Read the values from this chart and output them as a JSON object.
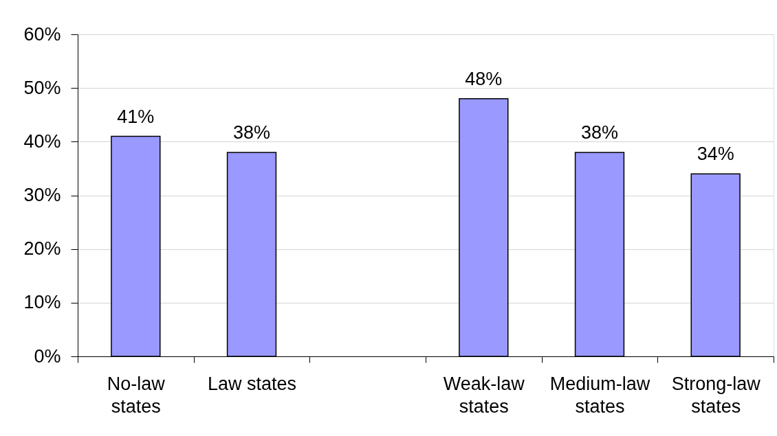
{
  "chart_data": {
    "type": "bar",
    "categories": [
      "No-law states",
      "Law states",
      null,
      "Weak-law states",
      "Medium-law states",
      "Strong-law states"
    ],
    "values": [
      41,
      38,
      null,
      48,
      38,
      34
    ],
    "value_labels": [
      "41%",
      "38%",
      null,
      "48%",
      "38%",
      "34%"
    ],
    "color": "#9999ff",
    "ylim": [
      0,
      60
    ],
    "yticks": [
      {
        "value": 0,
        "label": "0%"
      },
      {
        "value": 10,
        "label": "10%"
      },
      {
        "value": 20,
        "label": "20%"
      },
      {
        "value": 30,
        "label": "30%"
      },
      {
        "value": 40,
        "label": "40%"
      },
      {
        "value": 50,
        "label": "50%"
      },
      {
        "value": 60,
        "label": "60%"
      }
    ],
    "grid": "y"
  }
}
